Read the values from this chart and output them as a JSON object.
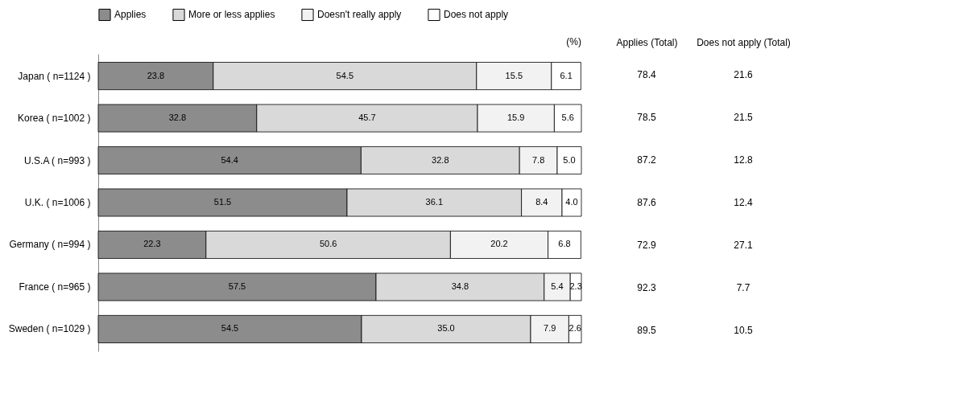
{
  "chart_data": {
    "type": "bar",
    "orientation": "horizontal",
    "stacked": true,
    "legend": "top",
    "tick_labels": "y",
    "xlim": [
      0,
      100
    ],
    "categories": [
      "Japan ( n=1124 )",
      "Korea ( n=1002 )",
      "U.S.A ( n=993 )",
      "U.K. ( n=1006 )",
      "Germany ( n=994 )",
      "France ( n=965 )",
      "Sweden ( n=1029 )"
    ],
    "series": [
      {
        "name": "Applies",
        "color": "#8c8c8c",
        "values": [
          23.8,
          32.8,
          54.4,
          51.5,
          22.3,
          57.5,
          54.5
        ],
        "value_labels": [
          "23.8",
          "32.8",
          "54.4",
          "51.5",
          "22.3",
          "57.5",
          "54.5"
        ]
      },
      {
        "name": "More or less applies",
        "color": "#d9d9d9",
        "values": [
          54.5,
          45.7,
          32.8,
          36.1,
          50.6,
          34.8,
          35.0
        ],
        "value_labels": [
          "54.5",
          "45.7",
          "32.8",
          "36.1",
          "50.6",
          "34.8",
          "35.0"
        ]
      },
      {
        "name": "Doesn't really apply",
        "color": "#f2f2f2",
        "values": [
          15.5,
          15.9,
          7.8,
          8.4,
          20.2,
          5.4,
          7.9
        ],
        "value_labels": [
          "15.5",
          "15.9",
          "7.8",
          "8.4",
          "20.2",
          "5.4",
          "7.9"
        ]
      },
      {
        "name": "Does not apply",
        "color": "#ffffff",
        "values": [
          6.1,
          5.6,
          5.0,
          4.0,
          6.8,
          2.3,
          2.6
        ],
        "value_labels": [
          "6.1",
          "5.6",
          "5.0",
          "4.0",
          "6.8",
          "2.3",
          "2.6"
        ]
      }
    ],
    "annotations": [
      "(%)",
      "Applies (Total)",
      "Does not apply (Total)",
      "78.4",
      "21.6",
      "78.5",
      "21.5",
      "87.2",
      "12.8",
      "87.6",
      "12.4",
      "72.9",
      "27.1",
      "92.3",
      "7.7",
      "89.5",
      "10.5"
    ]
  }
}
